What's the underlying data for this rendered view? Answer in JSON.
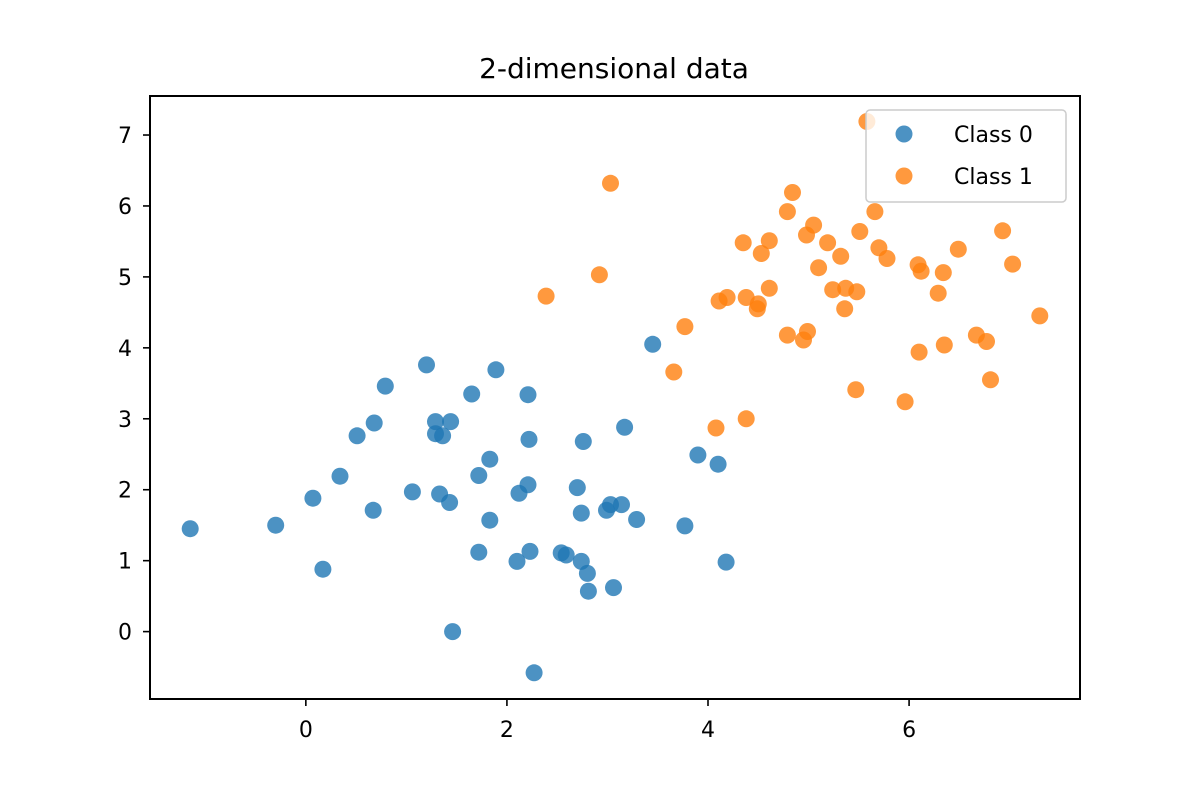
{
  "chart_data": {
    "type": "scatter",
    "title": "2-dimensional data",
    "xlabel": "",
    "ylabel": "",
    "xlim": [
      -1.55,
      7.7
    ],
    "ylim": [
      -0.95,
      7.55
    ],
    "xticks": [
      0,
      2,
      4,
      6
    ],
    "yticks": [
      0,
      1,
      2,
      3,
      4,
      5,
      6,
      7
    ],
    "grid": false,
    "legend_position": "top-right",
    "series": [
      {
        "name": "Class 0",
        "color": "#1f77b4",
        "points": [
          [
            -1.15,
            1.45
          ],
          [
            -0.3,
            1.5
          ],
          [
            0.07,
            1.88
          ],
          [
            0.17,
            0.88
          ],
          [
            0.34,
            2.19
          ],
          [
            0.51,
            2.76
          ],
          [
            0.67,
            1.71
          ],
          [
            0.68,
            2.94
          ],
          [
            0.79,
            3.46
          ],
          [
            1.06,
            1.97
          ],
          [
            1.2,
            3.76
          ],
          [
            1.29,
            2.96
          ],
          [
            1.29,
            2.79
          ],
          [
            1.33,
            1.94
          ],
          [
            1.36,
            2.76
          ],
          [
            1.43,
            1.82
          ],
          [
            1.44,
            2.96
          ],
          [
            1.46,
            0.0
          ],
          [
            1.65,
            3.35
          ],
          [
            1.72,
            1.12
          ],
          [
            1.72,
            2.2
          ],
          [
            1.83,
            2.43
          ],
          [
            1.83,
            1.57
          ],
          [
            1.89,
            3.69
          ],
          [
            2.1,
            0.99
          ],
          [
            2.12,
            1.95
          ],
          [
            2.21,
            3.34
          ],
          [
            2.21,
            2.07
          ],
          [
            2.22,
            2.71
          ],
          [
            2.23,
            1.13
          ],
          [
            2.27,
            -0.58
          ],
          [
            2.54,
            1.11
          ],
          [
            2.59,
            1.08
          ],
          [
            2.7,
            2.03
          ],
          [
            2.74,
            0.99
          ],
          [
            2.74,
            1.67
          ],
          [
            2.76,
            2.68
          ],
          [
            2.8,
            0.82
          ],
          [
            2.81,
            0.57
          ],
          [
            2.99,
            1.71
          ],
          [
            3.03,
            1.79
          ],
          [
            3.06,
            0.62
          ],
          [
            3.14,
            1.79
          ],
          [
            3.17,
            2.88
          ],
          [
            3.29,
            1.58
          ],
          [
            3.45,
            4.05
          ],
          [
            3.77,
            1.49
          ],
          [
            3.9,
            2.49
          ],
          [
            4.1,
            2.36
          ],
          [
            4.18,
            0.98
          ]
        ]
      },
      {
        "name": "Class 1",
        "color": "#ff7f0e",
        "points": [
          [
            2.39,
            4.73
          ],
          [
            2.92,
            5.03
          ],
          [
            3.03,
            6.32
          ],
          [
            3.66,
            3.66
          ],
          [
            3.77,
            4.3
          ],
          [
            4.08,
            2.87
          ],
          [
            4.11,
            4.66
          ],
          [
            4.19,
            4.71
          ],
          [
            4.35,
            5.48
          ],
          [
            4.38,
            3.0
          ],
          [
            4.38,
            4.71
          ],
          [
            4.49,
            4.55
          ],
          [
            4.5,
            4.62
          ],
          [
            4.53,
            5.33
          ],
          [
            4.61,
            4.84
          ],
          [
            4.61,
            5.51
          ],
          [
            4.79,
            4.18
          ],
          [
            4.79,
            5.92
          ],
          [
            4.84,
            6.19
          ],
          [
            4.95,
            4.11
          ],
          [
            4.98,
            5.59
          ],
          [
            4.99,
            4.23
          ],
          [
            5.05,
            5.73
          ],
          [
            5.1,
            5.13
          ],
          [
            5.19,
            5.48
          ],
          [
            5.24,
            4.82
          ],
          [
            5.32,
            5.29
          ],
          [
            5.36,
            4.55
          ],
          [
            5.37,
            4.84
          ],
          [
            5.47,
            3.41
          ],
          [
            5.48,
            4.79
          ],
          [
            5.51,
            5.64
          ],
          [
            5.58,
            7.19
          ],
          [
            5.66,
            5.92
          ],
          [
            5.7,
            5.41
          ],
          [
            5.78,
            5.26
          ],
          [
            5.96,
            3.24
          ],
          [
            6.09,
            5.17
          ],
          [
            6.1,
            3.94
          ],
          [
            6.12,
            5.08
          ],
          [
            6.29,
            4.77
          ],
          [
            6.34,
            5.06
          ],
          [
            6.35,
            4.04
          ],
          [
            6.49,
            5.39
          ],
          [
            6.67,
            4.18
          ],
          [
            6.77,
            4.09
          ],
          [
            6.81,
            3.55
          ],
          [
            6.93,
            5.65
          ],
          [
            7.03,
            5.18
          ],
          [
            7.3,
            4.45
          ]
        ]
      }
    ]
  }
}
